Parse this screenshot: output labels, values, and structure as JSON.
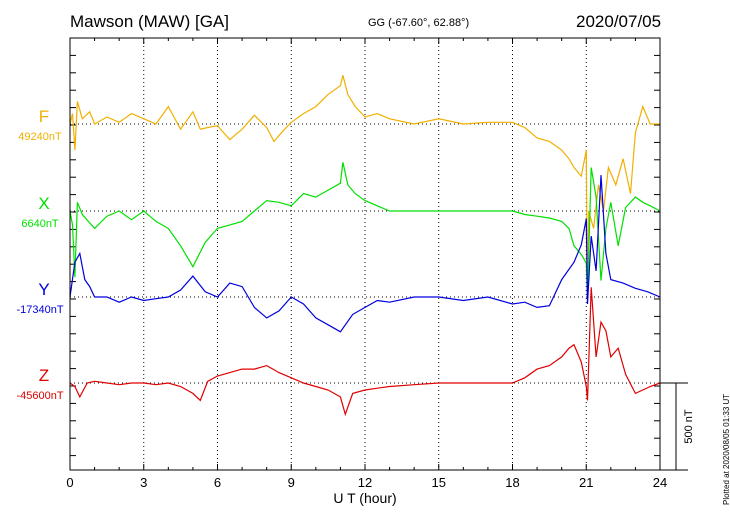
{
  "header": {
    "station": "Mawson (MAW)  [GA]",
    "coords": "GG (-67.60°,  62.88°)",
    "date": "2020/07/05",
    "plotted": "Plotted at 2020/08/05 01:33 UT"
  },
  "chart_data": {
    "type": "line",
    "title": "Mawson (MAW)  [GA]",
    "xlabel": "U T (hour)",
    "xlim": [
      0,
      24
    ],
    "xticks": [
      "0",
      "3",
      "6",
      "9",
      "12",
      "15",
      "18",
      "21",
      "24"
    ],
    "grid": true,
    "scale_bar": "500 nT",
    "scale_nT": 500,
    "series": [
      {
        "name": "F",
        "baseline_label": "49240nT",
        "color": "#f0b000",
        "x": [
          0,
          0.1,
          0.2,
          0.3,
          0.5,
          0.8,
          1,
          1.5,
          2,
          2.5,
          3,
          3.5,
          4,
          4.5,
          5,
          5.3,
          5.6,
          6,
          6.5,
          7,
          7.5,
          8,
          8.3,
          8.6,
          9,
          9.5,
          10,
          10.5,
          11,
          11.1,
          11.3,
          11.6,
          12,
          12.5,
          13,
          14,
          15,
          16,
          17,
          18,
          18.5,
          19,
          19.5,
          20,
          20.3,
          20.5,
          20.8,
          21,
          21.05,
          21.1,
          21.3,
          21.5,
          21.7,
          21.9,
          22.2,
          22.5,
          22.8,
          23,
          23.3,
          23.6,
          24
        ],
        "y": [
          0,
          60,
          -150,
          130,
          30,
          70,
          0,
          40,
          10,
          60,
          30,
          0,
          100,
          -30,
          70,
          -30,
          -20,
          -10,
          -90,
          -30,
          50,
          -20,
          -100,
          -50,
          10,
          60,
          100,
          170,
          220,
          280,
          170,
          100,
          40,
          60,
          30,
          0,
          30,
          0,
          10,
          10,
          -20,
          -80,
          -100,
          -150,
          -200,
          -250,
          -300,
          -150,
          -1000,
          -500,
          -600,
          -350,
          -500,
          -250,
          -350,
          -200,
          -400,
          -50,
          100,
          0,
          0
        ]
      },
      {
        "name": "X",
        "baseline_label": "6640nT",
        "color": "#00e000",
        "x": [
          0,
          0.1,
          0.2,
          0.3,
          0.5,
          1,
          1.5,
          2,
          2.5,
          3,
          3.5,
          4,
          4.5,
          5,
          5.5,
          6,
          6.5,
          7,
          7.5,
          8,
          8.5,
          9,
          9.5,
          10,
          10.5,
          11,
          11.1,
          11.3,
          11.6,
          12,
          12.5,
          13,
          14,
          15,
          16,
          17,
          18,
          18.5,
          19,
          19.5,
          20,
          20.3,
          20.5,
          20.8,
          21,
          21.05,
          21.2,
          21.4,
          21.6,
          21.8,
          22,
          22.3,
          22.6,
          23,
          23.3,
          23.6,
          24
        ],
        "y": [
          0,
          -80,
          -380,
          50,
          -20,
          -100,
          -30,
          0,
          -50,
          0,
          -60,
          -100,
          -200,
          -320,
          -180,
          -100,
          -80,
          -60,
          0,
          60,
          50,
          30,
          100,
          80,
          120,
          160,
          280,
          150,
          100,
          60,
          30,
          0,
          0,
          0,
          0,
          0,
          0,
          -20,
          -30,
          -40,
          -60,
          -100,
          -200,
          -250,
          -300,
          -500,
          250,
          80,
          -400,
          -100,
          50,
          -200,
          20,
          80,
          50,
          30,
          0
        ]
      },
      {
        "name": "Y",
        "baseline_label": "-17340nT",
        "color": "#0000e0",
        "x": [
          0,
          0.2,
          0.4,
          0.6,
          0.8,
          1,
          1.5,
          2,
          2.5,
          3,
          3.5,
          4,
          4.5,
          5,
          5.5,
          6,
          6.5,
          7,
          7.5,
          8,
          8.5,
          9,
          9.5,
          10,
          10.5,
          11,
          11.5,
          12,
          12.5,
          13,
          14,
          15,
          16,
          17,
          18,
          18.5,
          19,
          19.5,
          20,
          20.5,
          20.8,
          21,
          21.05,
          21.2,
          21.4,
          21.6,
          21.8,
          22,
          22.5,
          23,
          23.5,
          24
        ],
        "y": [
          0,
          200,
          250,
          100,
          60,
          0,
          0,
          -30,
          0,
          -20,
          -10,
          0,
          40,
          120,
          30,
          0,
          80,
          60,
          -60,
          -120,
          -80,
          0,
          -40,
          -120,
          -160,
          -200,
          -100,
          -60,
          -20,
          -30,
          0,
          0,
          -20,
          0,
          -40,
          -30,
          -60,
          -50,
          100,
          200,
          300,
          450,
          -40,
          350,
          150,
          700,
          250,
          100,
          80,
          50,
          30,
          0
        ]
      },
      {
        "name": "Z",
        "baseline_label": "-45600nT",
        "color": "#e00000",
        "x": [
          0,
          0.2,
          0.4,
          0.7,
          1,
          1.5,
          2,
          2.5,
          3,
          3.5,
          4,
          4.5,
          5,
          5.3,
          5.6,
          6,
          6.5,
          7,
          7.5,
          8,
          8.5,
          9,
          9.5,
          10,
          10.5,
          11,
          11.2,
          11.5,
          12,
          12.5,
          13,
          14,
          15,
          16,
          17,
          18,
          18.5,
          19,
          19.5,
          20,
          20.3,
          20.5,
          20.8,
          21,
          21.05,
          21.2,
          21.4,
          21.6,
          21.8,
          22,
          22.3,
          22.6,
          23,
          23.3,
          23.6,
          24
        ],
        "y": [
          0,
          -20,
          -80,
          0,
          10,
          0,
          -10,
          0,
          0,
          -10,
          0,
          -20,
          -60,
          -100,
          10,
          40,
          60,
          80,
          80,
          100,
          60,
          30,
          0,
          -20,
          -40,
          -80,
          -180,
          -60,
          -40,
          -30,
          -20,
          -10,
          0,
          0,
          0,
          0,
          30,
          80,
          100,
          150,
          200,
          220,
          120,
          -20,
          -100,
          550,
          150,
          350,
          300,
          150,
          200,
          50,
          -60,
          -40,
          -20,
          0
        ]
      }
    ]
  }
}
